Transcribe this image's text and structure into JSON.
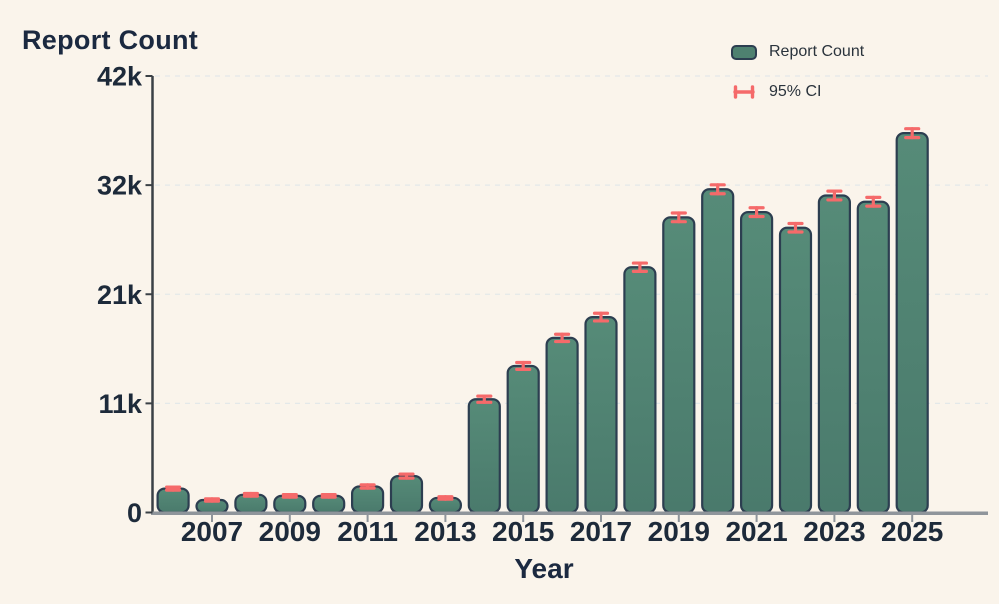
{
  "title": "Report Count",
  "legend": {
    "series_label": "Report Count",
    "ci_label": "95% CI"
  },
  "colors": {
    "background": "#FAF4EB",
    "bar_fill": "#4E8170",
    "bar_fill_light": "#568B78",
    "bar_fill_dark": "#4A7A6C",
    "bar_stroke": "#2C3E50",
    "ci": "#F56A6A",
    "text": "#1D2A3A",
    "grid": "#E3E8E9",
    "axis": "#3A4046",
    "baseline": "#8F959B"
  },
  "chart_data": {
    "type": "bar",
    "title": "Report Count",
    "xlabel": "Year",
    "ylabel": "Report Count",
    "categories": [
      2006,
      2007,
      2008,
      2009,
      2010,
      2011,
      2012,
      2013,
      2014,
      2015,
      2016,
      2017,
      2018,
      2019,
      2020,
      2021,
      2022,
      2023,
      2024,
      2025
    ],
    "values": [
      2300,
      1200,
      1700,
      1600,
      1600,
      2500,
      3500,
      1400,
      10900,
      14100,
      16800,
      18800,
      23600,
      28400,
      31100,
      28900,
      27400,
      30500,
      29900,
      36500
    ],
    "ci_half": [
      150,
      110,
      130,
      125,
      125,
      160,
      190,
      120,
      300,
      330,
      350,
      370,
      400,
      420,
      430,
      420,
      410,
      425,
      420,
      430
    ],
    "ylim": [
      0,
      42000
    ],
    "yticks": {
      "values": [
        0,
        10500,
        21000,
        31500,
        42000
      ],
      "labels": [
        "0",
        "11k",
        "21k",
        "32k",
        "42k"
      ]
    },
    "xticks": [
      2007,
      2009,
      2011,
      2013,
      2015,
      2017,
      2019,
      2021,
      2023,
      2025
    ],
    "grid": "horizontal-dashed",
    "legend_position": "top-right",
    "series": [
      {
        "name": "Report Count",
        "type": "bar"
      },
      {
        "name": "95% CI",
        "type": "errorbar"
      }
    ]
  }
}
